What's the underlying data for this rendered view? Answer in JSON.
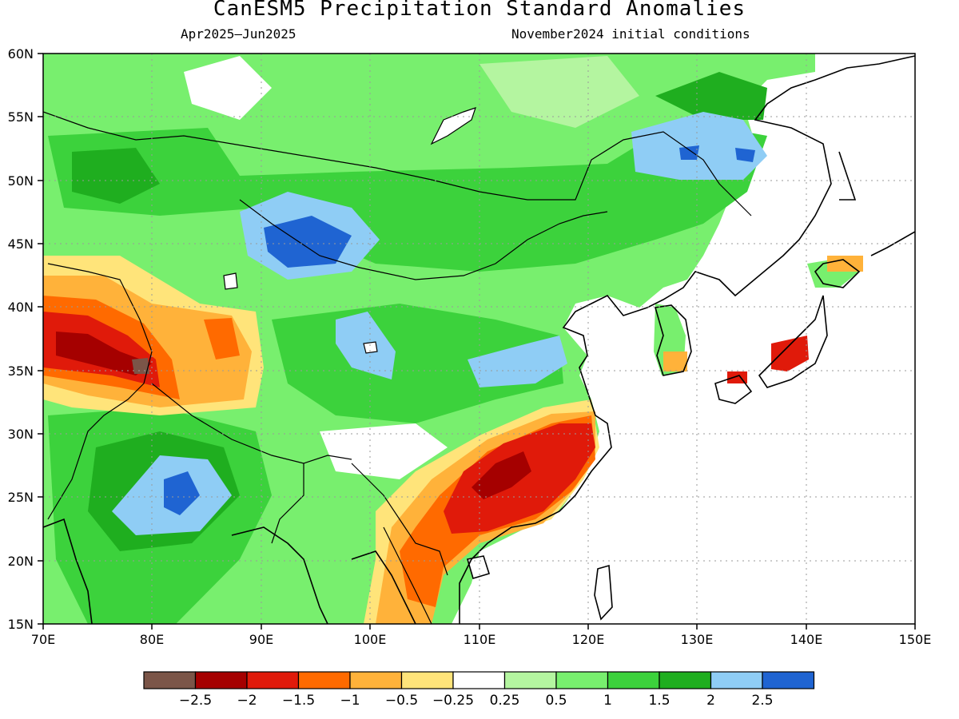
{
  "header": {
    "title": "CanESM5 Precipitation Standard Anomalies",
    "period": "Apr2025–Jun2025",
    "init": "November2024 initial conditions"
  },
  "axes": {
    "lon_ticks": [
      "70E",
      "80E",
      "90E",
      "100E",
      "110E",
      "120E",
      "130E",
      "140E",
      "150E"
    ],
    "lat_ticks": [
      "60N",
      "55N",
      "50N",
      "45N",
      "40N",
      "35N",
      "30N",
      "25N",
      "20N",
      "15N"
    ],
    "lon_range": [
      70,
      150
    ],
    "lat_range": [
      15,
      60
    ]
  },
  "colorbar": {
    "colors": [
      "#7b5548",
      "#a50000",
      "#e01a0a",
      "#ff6a00",
      "#ffb23a",
      "#ffe47a",
      "#ffffff",
      "#b4f5a0",
      "#78ef6e",
      "#3cd23c",
      "#1fae1f",
      "#8fcdf5",
      "#1f64d2"
    ],
    "labels": [
      "−2.5",
      "−2",
      "−1.5",
      "−1",
      "−0.5",
      "−0.25",
      "0.25",
      "0.5",
      "1",
      "1.5",
      "2",
      "2.5"
    ]
  },
  "colors": {
    "ocean": "#ffffff",
    "land_base": "#78ef6e",
    "coast": "#000000"
  }
}
